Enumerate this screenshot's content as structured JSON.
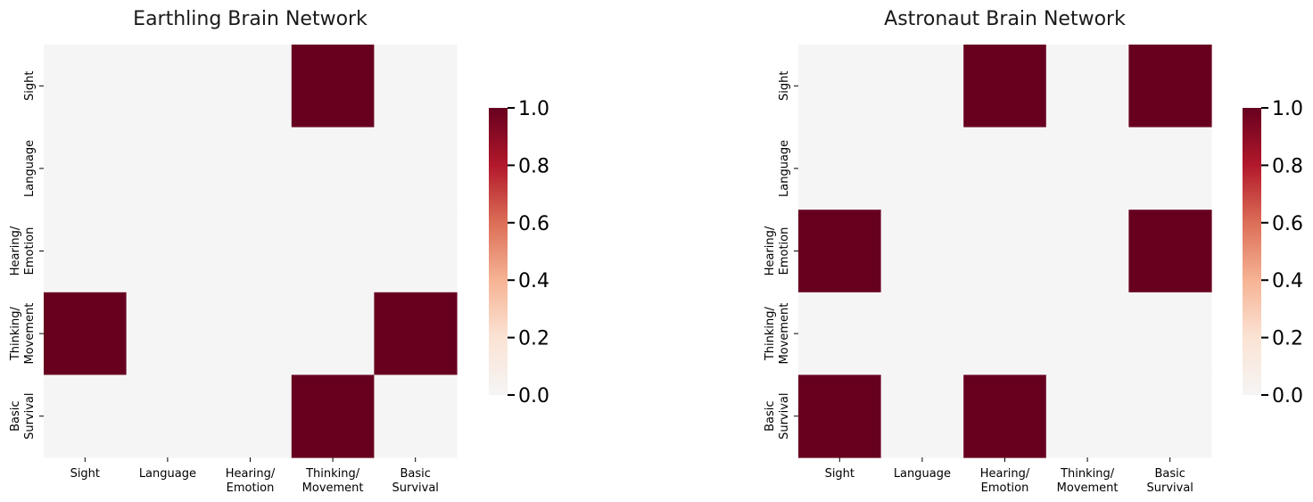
{
  "colorbar": {
    "ticks": [
      "0.0",
      "0.2",
      "0.4",
      "0.6",
      "0.8",
      "1.0"
    ],
    "range": [
      0,
      1
    ],
    "colormap": [
      "#f5f5f5",
      "#fbe3d4",
      "#f6b394",
      "#dc6e57",
      "#b2182b",
      "#67001f"
    ]
  },
  "colors": {
    "empty": "#f5f5f5",
    "filled": "#67001f"
  },
  "chart_data": [
    {
      "type": "heatmap",
      "title": "Earthling Brain Network",
      "categories": [
        [
          "Sight"
        ],
        [
          "Language"
        ],
        [
          "Hearing/",
          "Emotion"
        ],
        [
          "Thinking/",
          "Movement"
        ],
        [
          "Basic",
          "Survival"
        ]
      ],
      "values": [
        [
          0,
          0,
          0,
          1,
          0
        ],
        [
          0,
          0,
          0,
          0,
          0
        ],
        [
          0,
          0,
          0,
          0,
          0
        ],
        [
          1,
          0,
          0,
          0,
          1
        ],
        [
          0,
          0,
          0,
          1,
          0
        ]
      ],
      "vmin": 0,
      "vmax": 1
    },
    {
      "type": "heatmap",
      "title": "Astronaut Brain Network",
      "categories": [
        [
          "Sight"
        ],
        [
          "Language"
        ],
        [
          "Hearing/",
          "Emotion"
        ],
        [
          "Thinking/",
          "Movement"
        ],
        [
          "Basic",
          "Survival"
        ]
      ],
      "values": [
        [
          0,
          0,
          1,
          0,
          1
        ],
        [
          0,
          0,
          0,
          0,
          0
        ],
        [
          1,
          0,
          0,
          0,
          1
        ],
        [
          0,
          0,
          0,
          0,
          0
        ],
        [
          1,
          0,
          1,
          0,
          0
        ]
      ],
      "vmin": 0,
      "vmax": 1
    }
  ]
}
